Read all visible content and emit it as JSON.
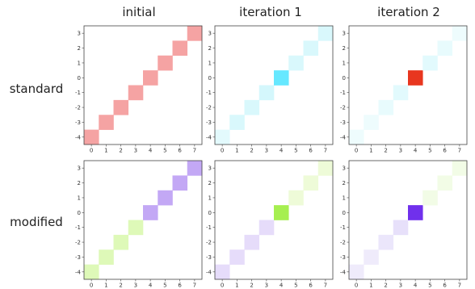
{
  "columns": [
    "initial",
    "iteration 1",
    "iteration 2"
  ],
  "rows": [
    "standard",
    "modified"
  ],
  "chart_data": {
    "type": "heatmap",
    "x_ticks": [
      "0",
      "1",
      "2",
      "3",
      "4",
      "5",
      "6",
      "7"
    ],
    "y_ticks": [
      "3",
      "2",
      "1",
      "0",
      "-1",
      "-2",
      "-3",
      "-4"
    ],
    "xlim": [
      0,
      7
    ],
    "ylim": [
      -4,
      3
    ],
    "grid": false,
    "diagonal_cells": [
      {
        "x": 0,
        "y": -4
      },
      {
        "x": 1,
        "y": -3
      },
      {
        "x": 2,
        "y": -2
      },
      {
        "x": 3,
        "y": -1
      },
      {
        "x": 4,
        "y": 0
      },
      {
        "x": 5,
        "y": 1
      },
      {
        "x": 6,
        "y": 2
      },
      {
        "x": 7,
        "y": 3
      }
    ],
    "panels": [
      {
        "row": "standard",
        "column": "initial",
        "colors": [
          "#f5a3a3",
          "#f5a3a3",
          "#f5a3a3",
          "#f5a3a3",
          "#f5a3a3",
          "#f5a3a3",
          "#f5a3a3",
          "#f5a3a3"
        ]
      },
      {
        "row": "standard",
        "column": "iteration 1",
        "colors": [
          "#e3fafd",
          "#d9f8fc",
          "#d9f8fc",
          "#d4f7fc",
          "#66e8ff",
          "#d9f8fc",
          "#d9f8fc",
          "#d9f8fc"
        ]
      },
      {
        "row": "standard",
        "column": "iteration 2",
        "colors": [
          "#eefcfd",
          "#eefcfd",
          "#e8fbfd",
          "#e2fafd",
          "#e8361f",
          "#e2fafd",
          "#e8fbfd",
          "#eefcfd"
        ]
      },
      {
        "row": "modified",
        "column": "initial",
        "colors": [
          "#def9b8",
          "#def9b8",
          "#def9b8",
          "#def9b8",
          "#c3a8f5",
          "#c3a8f5",
          "#c3a8f5",
          "#c3a8f5"
        ]
      },
      {
        "row": "modified",
        "column": "iteration 1",
        "colors": [
          "#e6dcfa",
          "#e6dcfa",
          "#e6dcfa",
          "#e6dcfa",
          "#a6ef50",
          "#eefbd8",
          "#eefbd8",
          "#eefbd8"
        ]
      },
      {
        "row": "modified",
        "column": "iteration 2",
        "colors": [
          "#efebfb",
          "#efebfb",
          "#ebe6fb",
          "#e7e0fa",
          "#7030ec",
          "#f2fce6",
          "#f2fce6",
          "#f2fce6"
        ]
      }
    ]
  }
}
